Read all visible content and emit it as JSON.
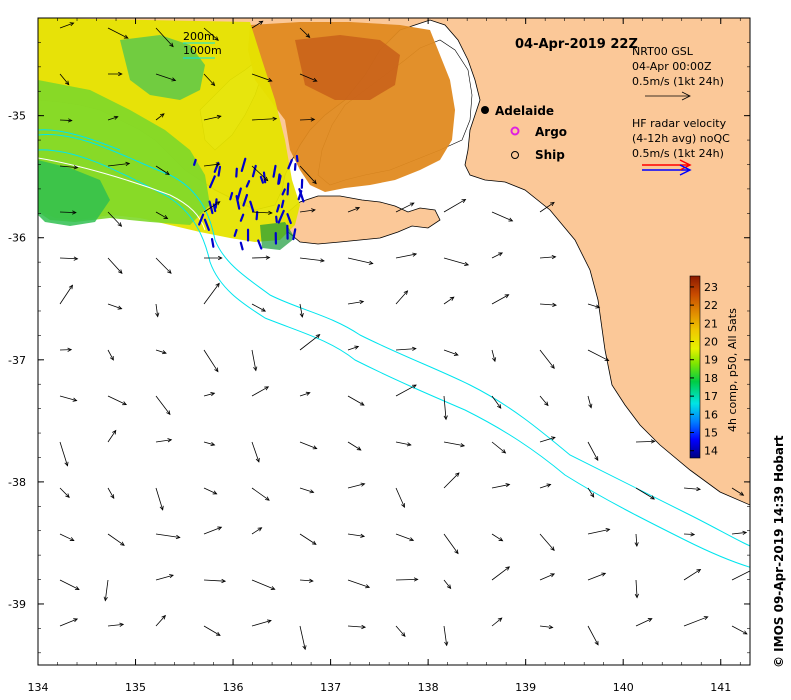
{
  "title": "04-Apr-2019 22Z",
  "depth_legend": {
    "contour_200": "200m",
    "contour_1000": "1000m"
  },
  "model_legend": {
    "line1": "NRT00 GSL",
    "line2": "04-Apr 00:00Z",
    "line3": "0.5m/s (1kt 24h)"
  },
  "radar_legend": {
    "line1": "HF radar velocity",
    "line2": "(4-12h avg) noQC",
    "line3": "0.5m/s (1kt 24h)"
  },
  "places": {
    "city": "Adelaide",
    "argo": "Argo",
    "ship": "Ship"
  },
  "colorbar": {
    "label": "4h comp, p50, All Sats",
    "ticks": [
      "14",
      "15",
      "16",
      "17",
      "18",
      "19",
      "20",
      "21",
      "22",
      "23"
    ],
    "range": [
      13.6,
      23.6
    ]
  },
  "axes": {
    "x_ticks": [
      "134",
      "135",
      "136",
      "137",
      "138",
      "139",
      "140",
      "141"
    ],
    "y_ticks": [
      "-35",
      "-36",
      "-37",
      "-38",
      "-39"
    ],
    "xlim": [
      134,
      141.3
    ],
    "ylim": [
      -39.5,
      -34.2
    ]
  },
  "credit": "© IMOS 09-Apr-2019 14:39 Hobart",
  "colors": {
    "land": "#FBC898",
    "ocean": "#FFFFFF",
    "contour": "#00E5EE",
    "radar_red": "#FF0000",
    "radar_blue": "#0000FF",
    "vector": "#000000"
  }
}
